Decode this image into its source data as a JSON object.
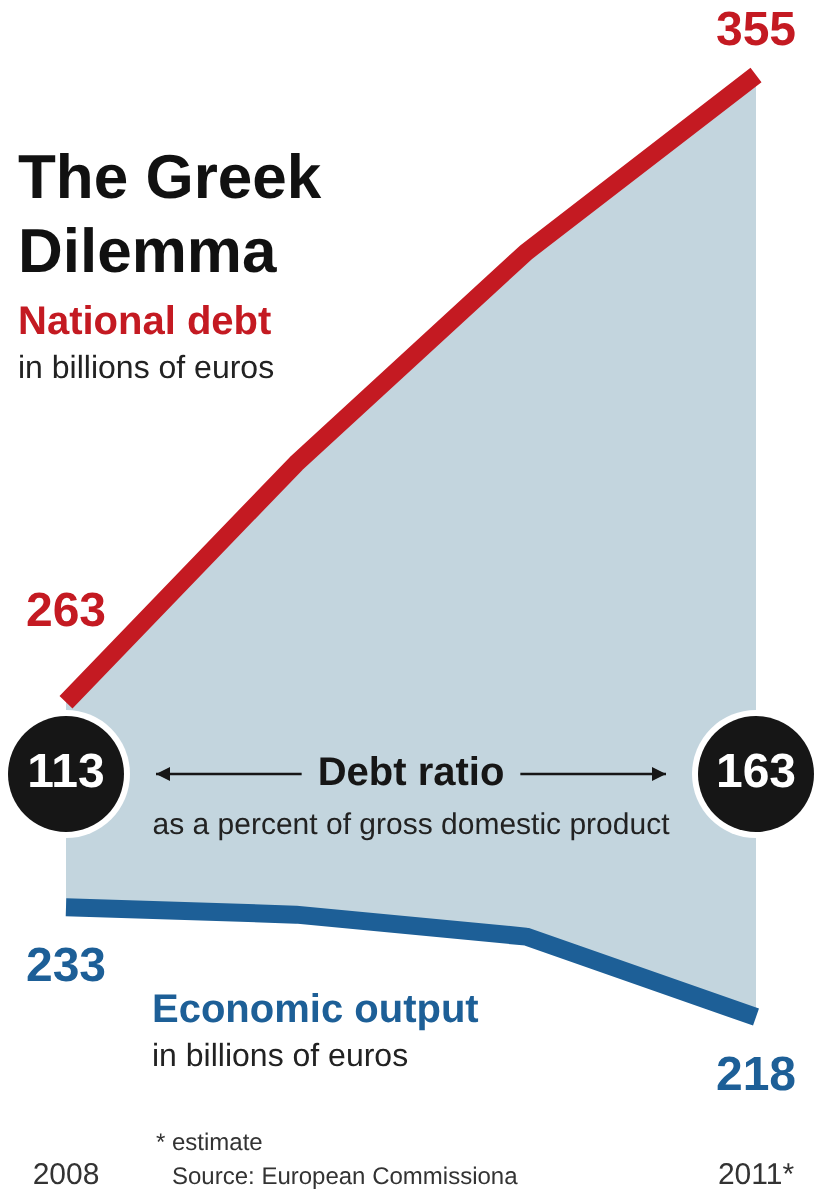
{
  "chart_data": {
    "type": "line",
    "title": "The Greek Dilemma",
    "categories": [
      "2008",
      null,
      null,
      "2011*"
    ],
    "series": [
      {
        "name": "National debt",
        "type": "area",
        "color": "#c41a22",
        "values": [
          263,
          298,
          329,
          355
        ],
        "value_labels": [
          "263",
          null,
          null,
          "355"
        ]
      },
      {
        "name": "Economic output",
        "type": "line",
        "axis": "y2",
        "color": "#1d5f97",
        "values": [
          233,
          232,
          229,
          218
        ],
        "value_labels": [
          "233",
          null,
          null,
          "218"
        ]
      }
    ],
    "ylim": [
      190,
      366
    ],
    "y2lim": [
      193,
      357
    ],
    "tick_labels": "x",
    "legend": false,
    "annotations": [
      "in billions of euros",
      "in billions of euros",
      "113",
      "163",
      "Debt ratio",
      "as a percent of gross domestic product",
      "* estimate",
      "Source: European Commissiona"
    ]
  }
}
